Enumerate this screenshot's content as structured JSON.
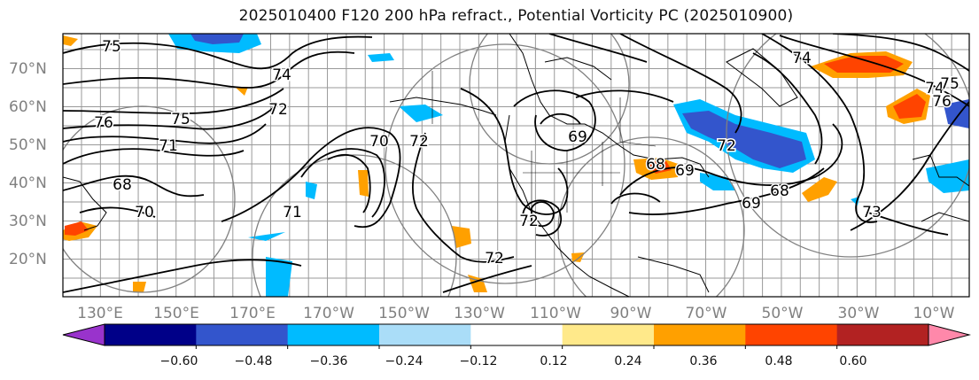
{
  "title": "2025010400 F120 200 hPa refract., Potential Vorticity PC (2025010900)",
  "lat_labels": [
    "70°N",
    "60°N",
    "50°N",
    "40°N",
    "30°N",
    "20°N"
  ],
  "lon_labels": [
    "130°E",
    "150°E",
    "170°E",
    "170°W",
    "150°W",
    "130°W",
    "110°W",
    "90°W",
    "70°W",
    "50°W",
    "30°W",
    "10°W"
  ],
  "contour_labels": [
    "75",
    "76",
    "75",
    "74",
    "72",
    "74",
    "71",
    "68",
    "70",
    "70",
    "72",
    "69",
    "69",
    "71",
    "72",
    "72",
    "68",
    "69",
    "68",
    "73",
    "74",
    "75",
    "76",
    "72"
  ],
  "colorbar": {
    "ticks": [
      "−0.60",
      "−0.48",
      "−0.36",
      "−0.24",
      "−0.12",
      "0.12",
      "0.24",
      "0.36",
      "0.48",
      "0.60"
    ],
    "colors": [
      "#9933cc",
      "#000088",
      "#3355cc",
      "#00bbff",
      "#aaddf8",
      "#ffffff",
      "#ffe98a",
      "#ffa000",
      "#ff4400",
      "#b22222",
      "#ff88aa"
    ]
  }
}
